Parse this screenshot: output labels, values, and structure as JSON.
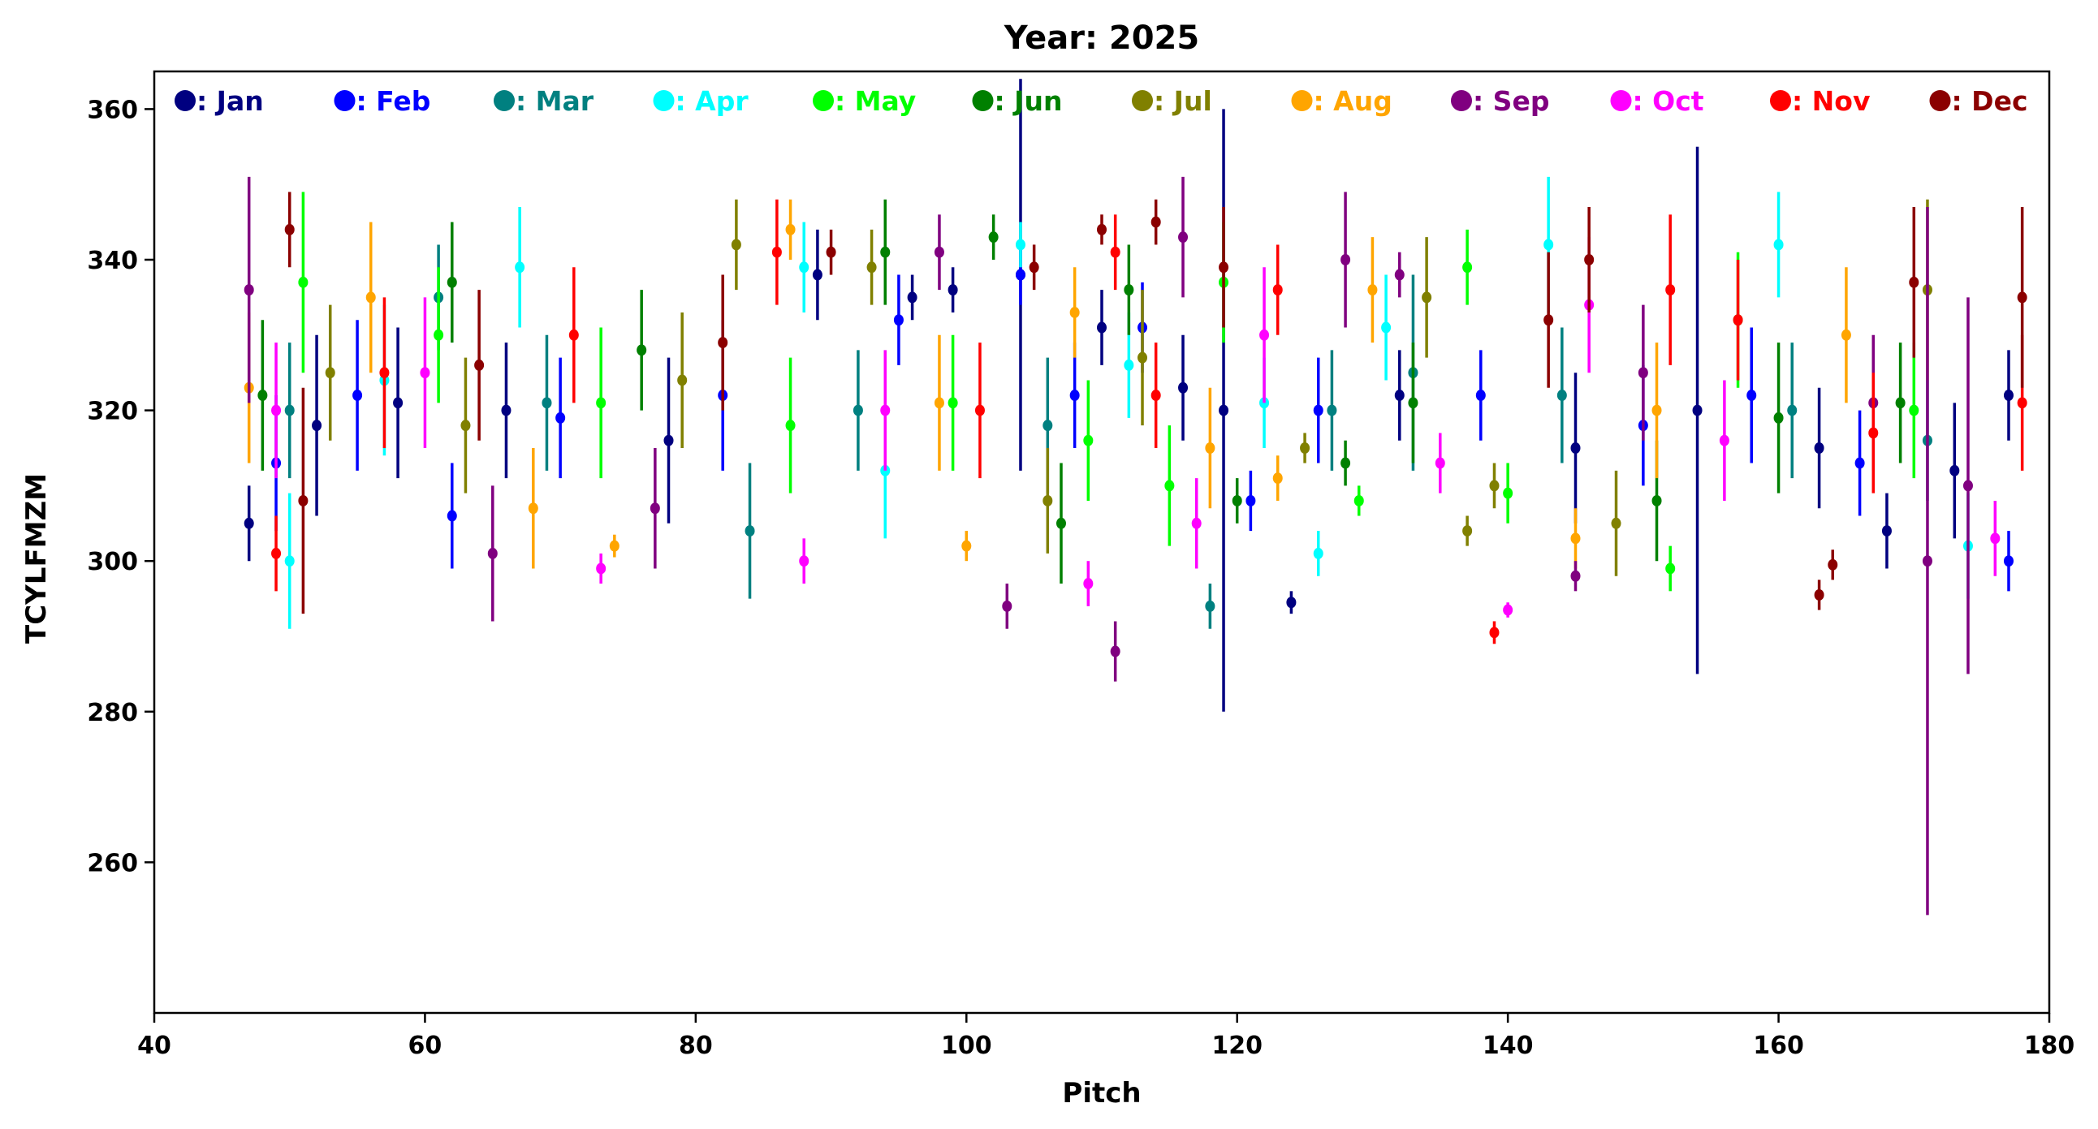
{
  "chart_data": {
    "type": "scatter",
    "style": "errorbar",
    "title": "Year: 2025",
    "xlabel": "Pitch",
    "ylabel": "TCYLFMZM",
    "xlim": [
      40,
      180
    ],
    "ylim": [
      240,
      365
    ],
    "x_ticks": [
      40,
      60,
      80,
      100,
      120,
      140,
      160,
      180
    ],
    "y_ticks": [
      260,
      280,
      300,
      320,
      340,
      360
    ],
    "grid": false,
    "legend_placement": "top, single row",
    "note": "Dense error-bar cloud: each point is a mean value with a vertical error bar, colored by month. Points listed are estimated representative samples read from the figure.",
    "series": [
      {
        "name": ": Jan",
        "color": "#000080",
        "points": [
          {
            "x": 47,
            "y": 305,
            "err": 5
          },
          {
            "x": 52,
            "y": 318,
            "err": 12
          },
          {
            "x": 58,
            "y": 321,
            "err": 10
          },
          {
            "x": 66,
            "y": 320,
            "err": 9
          },
          {
            "x": 78,
            "y": 316,
            "err": 11
          },
          {
            "x": 89,
            "y": 338,
            "err": 6
          },
          {
            "x": 96,
            "y": 335,
            "err": 3
          },
          {
            "x": 99,
            "y": 336,
            "err": 3
          },
          {
            "x": 104,
            "y": 338,
            "err": 26
          },
          {
            "x": 110,
            "y": 331,
            "err": 5
          },
          {
            "x": 116,
            "y": 323,
            "err": 7
          },
          {
            "x": 119,
            "y": 320,
            "err": 40
          },
          {
            "x": 124,
            "y": 294.5,
            "err": 1.5
          },
          {
            "x": 132,
            "y": 322,
            "err": 6
          },
          {
            "x": 145,
            "y": 315,
            "err": 10
          },
          {
            "x": 154,
            "y": 320,
            "err": 35
          },
          {
            "x": 163,
            "y": 315,
            "err": 8
          },
          {
            "x": 168,
            "y": 304,
            "err": 5
          },
          {
            "x": 173,
            "y": 312,
            "err": 9
          },
          {
            "x": 177,
            "y": 322,
            "err": 6
          }
        ]
      },
      {
        "name": ": Feb",
        "color": "#0000ff",
        "points": [
          {
            "x": 49,
            "y": 313,
            "err": 9
          },
          {
            "x": 55,
            "y": 322,
            "err": 10
          },
          {
            "x": 62,
            "y": 306,
            "err": 7
          },
          {
            "x": 70,
            "y": 319,
            "err": 8
          },
          {
            "x": 82,
            "y": 322,
            "err": 10
          },
          {
            "x": 95,
            "y": 332,
            "err": 6
          },
          {
            "x": 104,
            "y": 338,
            "err": 4
          },
          {
            "x": 108,
            "y": 322,
            "err": 7
          },
          {
            "x": 113,
            "y": 331,
            "err": 6
          },
          {
            "x": 121,
            "y": 308,
            "err": 4
          },
          {
            "x": 126,
            "y": 320,
            "err": 7
          },
          {
            "x": 138,
            "y": 322,
            "err": 6
          },
          {
            "x": 150,
            "y": 318,
            "err": 8
          },
          {
            "x": 158,
            "y": 322,
            "err": 9
          },
          {
            "x": 166,
            "y": 313,
            "err": 7
          },
          {
            "x": 177,
            "y": 300,
            "err": 4
          }
        ]
      },
      {
        "name": ": Mar",
        "color": "#008080",
        "points": [
          {
            "x": 50,
            "y": 320,
            "err": 9
          },
          {
            "x": 61,
            "y": 335,
            "err": 7
          },
          {
            "x": 69,
            "y": 321,
            "err": 9
          },
          {
            "x": 84,
            "y": 304,
            "err": 9
          },
          {
            "x": 92,
            "y": 320,
            "err": 8
          },
          {
            "x": 106,
            "y": 318,
            "err": 9
          },
          {
            "x": 118,
            "y": 294,
            "err": 3
          },
          {
            "x": 127,
            "y": 320,
            "err": 8
          },
          {
            "x": 133,
            "y": 325,
            "err": 13
          },
          {
            "x": 144,
            "y": 322,
            "err": 9
          },
          {
            "x": 161,
            "y": 320,
            "err": 9
          },
          {
            "x": 171,
            "y": 316,
            "err": 8
          }
        ]
      },
      {
        "name": ": Apr",
        "color": "#00ffff",
        "points": [
          {
            "x": 50,
            "y": 300,
            "err": 9
          },
          {
            "x": 57,
            "y": 324,
            "err": 10
          },
          {
            "x": 67,
            "y": 339,
            "err": 8
          },
          {
            "x": 88,
            "y": 339,
            "err": 6
          },
          {
            "x": 94,
            "y": 312,
            "err": 9
          },
          {
            "x": 104,
            "y": 342,
            "err": 3
          },
          {
            "x": 112,
            "y": 326,
            "err": 7
          },
          {
            "x": 122,
            "y": 321,
            "err": 6
          },
          {
            "x": 126,
            "y": 301,
            "err": 3
          },
          {
            "x": 131,
            "y": 331,
            "err": 7
          },
          {
            "x": 143,
            "y": 342,
            "err": 9
          },
          {
            "x": 160,
            "y": 342,
            "err": 7
          },
          {
            "x": 174,
            "y": 302,
            "err": 7
          }
        ]
      },
      {
        "name": ": May",
        "color": "#00ff00",
        "points": [
          {
            "x": 51,
            "y": 337,
            "err": 12
          },
          {
            "x": 61,
            "y": 330,
            "err": 9
          },
          {
            "x": 73,
            "y": 321,
            "err": 10
          },
          {
            "x": 87,
            "y": 318,
            "err": 9
          },
          {
            "x": 99,
            "y": 321,
            "err": 9
          },
          {
            "x": 109,
            "y": 316,
            "err": 8
          },
          {
            "x": 115,
            "y": 310,
            "err": 8
          },
          {
            "x": 119,
            "y": 337,
            "err": 8
          },
          {
            "x": 129,
            "y": 308,
            "err": 2
          },
          {
            "x": 137,
            "y": 339,
            "err": 5
          },
          {
            "x": 140,
            "y": 309,
            "err": 4
          },
          {
            "x": 152,
            "y": 299,
            "err": 3
          },
          {
            "x": 157,
            "y": 332,
            "err": 9
          },
          {
            "x": 170,
            "y": 320,
            "err": 9
          }
        ]
      },
      {
        "name": ": Jun",
        "color": "#008000",
        "points": [
          {
            "x": 48,
            "y": 322,
            "err": 10
          },
          {
            "x": 62,
            "y": 337,
            "err": 8
          },
          {
            "x": 76,
            "y": 328,
            "err": 8
          },
          {
            "x": 94,
            "y": 341,
            "err": 7
          },
          {
            "x": 102,
            "y": 343,
            "err": 3
          },
          {
            "x": 107,
            "y": 305,
            "err": 8
          },
          {
            "x": 112,
            "y": 336,
            "err": 6
          },
          {
            "x": 120,
            "y": 308,
            "err": 3
          },
          {
            "x": 128,
            "y": 313,
            "err": 3
          },
          {
            "x": 133,
            "y": 321,
            "err": 8
          },
          {
            "x": 151,
            "y": 308,
            "err": 8
          },
          {
            "x": 160,
            "y": 319,
            "err": 10
          },
          {
            "x": 169,
            "y": 321,
            "err": 8
          }
        ]
      },
      {
        "name": ": Jul",
        "color": "#808000",
        "points": [
          {
            "x": 53,
            "y": 325,
            "err": 9
          },
          {
            "x": 63,
            "y": 318,
            "err": 9
          },
          {
            "x": 79,
            "y": 324,
            "err": 9
          },
          {
            "x": 83,
            "y": 342,
            "err": 6
          },
          {
            "x": 93,
            "y": 339,
            "err": 5
          },
          {
            "x": 106,
            "y": 308,
            "err": 7
          },
          {
            "x": 113,
            "y": 327,
            "err": 9
          },
          {
            "x": 125,
            "y": 315,
            "err": 2
          },
          {
            "x": 134,
            "y": 335,
            "err": 8
          },
          {
            "x": 137,
            "y": 304,
            "err": 2
          },
          {
            "x": 139,
            "y": 310,
            "err": 3
          },
          {
            "x": 148,
            "y": 305,
            "err": 7
          },
          {
            "x": 171,
            "y": 336,
            "err": 12
          }
        ]
      },
      {
        "name": ": Aug",
        "color": "#ffa500",
        "points": [
          {
            "x": 47,
            "y": 323,
            "err": 10
          },
          {
            "x": 56,
            "y": 335,
            "err": 10
          },
          {
            "x": 68,
            "y": 307,
            "err": 8
          },
          {
            "x": 74,
            "y": 302,
            "err": 1.5
          },
          {
            "x": 87,
            "y": 344,
            "err": 4
          },
          {
            "x": 98,
            "y": 321,
            "err": 9
          },
          {
            "x": 100,
            "y": 302,
            "err": 2
          },
          {
            "x": 108,
            "y": 333,
            "err": 6
          },
          {
            "x": 118,
            "y": 315,
            "err": 8
          },
          {
            "x": 123,
            "y": 311,
            "err": 3
          },
          {
            "x": 130,
            "y": 336,
            "err": 7
          },
          {
            "x": 145,
            "y": 303,
            "err": 4
          },
          {
            "x": 151,
            "y": 320,
            "err": 9
          },
          {
            "x": 165,
            "y": 330,
            "err": 9
          }
        ]
      },
      {
        "name": ": Sep",
        "color": "#800080",
        "points": [
          {
            "x": 47,
            "y": 336,
            "err": 15
          },
          {
            "x": 65,
            "y": 301,
            "err": 9
          },
          {
            "x": 77,
            "y": 307,
            "err": 8
          },
          {
            "x": 98,
            "y": 341,
            "err": 5
          },
          {
            "x": 103,
            "y": 294,
            "err": 3
          },
          {
            "x": 111,
            "y": 288,
            "err": 4
          },
          {
            "x": 116,
            "y": 343,
            "err": 8
          },
          {
            "x": 128,
            "y": 340,
            "err": 9
          },
          {
            "x": 132,
            "y": 338,
            "err": 3
          },
          {
            "x": 145,
            "y": 298,
            "err": 2
          },
          {
            "x": 150,
            "y": 325,
            "err": 9
          },
          {
            "x": 167,
            "y": 321,
            "err": 9
          },
          {
            "x": 171,
            "y": 300,
            "err": 47
          },
          {
            "x": 174,
            "y": 310,
            "err": 25
          }
        ]
      },
      {
        "name": ": Oct",
        "color": "#ff00ff",
        "points": [
          {
            "x": 49,
            "y": 320,
            "err": 9
          },
          {
            "x": 60,
            "y": 325,
            "err": 10
          },
          {
            "x": 73,
            "y": 299,
            "err": 2
          },
          {
            "x": 88,
            "y": 300,
            "err": 3
          },
          {
            "x": 94,
            "y": 320,
            "err": 8
          },
          {
            "x": 109,
            "y": 297,
            "err": 3
          },
          {
            "x": 117,
            "y": 305,
            "err": 6
          },
          {
            "x": 122,
            "y": 330,
            "err": 9
          },
          {
            "x": 135,
            "y": 313,
            "err": 4
          },
          {
            "x": 140,
            "y": 293.5,
            "err": 1
          },
          {
            "x": 146,
            "y": 334,
            "err": 9
          },
          {
            "x": 156,
            "y": 316,
            "err": 8
          },
          {
            "x": 176,
            "y": 303,
            "err": 5
          }
        ]
      },
      {
        "name": ": Nov",
        "color": "#ff0000",
        "points": [
          {
            "x": 49,
            "y": 301,
            "err": 5
          },
          {
            "x": 57,
            "y": 325,
            "err": 10
          },
          {
            "x": 71,
            "y": 330,
            "err": 9
          },
          {
            "x": 86,
            "y": 341,
            "err": 7
          },
          {
            "x": 101,
            "y": 320,
            "err": 9
          },
          {
            "x": 111,
            "y": 341,
            "err": 5
          },
          {
            "x": 114,
            "y": 322,
            "err": 7
          },
          {
            "x": 123,
            "y": 336,
            "err": 6
          },
          {
            "x": 139,
            "y": 290.5,
            "err": 1.5
          },
          {
            "x": 152,
            "y": 336,
            "err": 10
          },
          {
            "x": 157,
            "y": 332,
            "err": 8
          },
          {
            "x": 167,
            "y": 317,
            "err": 8
          },
          {
            "x": 178,
            "y": 321,
            "err": 9
          }
        ]
      },
      {
        "name": ": Dec",
        "color": "#8b0000",
        "points": [
          {
            "x": 50,
            "y": 344,
            "err": 5
          },
          {
            "x": 51,
            "y": 308,
            "err": 15
          },
          {
            "x": 64,
            "y": 326,
            "err": 10
          },
          {
            "x": 82,
            "y": 329,
            "err": 9
          },
          {
            "x": 90,
            "y": 341,
            "err": 3
          },
          {
            "x": 105,
            "y": 339,
            "err": 3
          },
          {
            "x": 110,
            "y": 344,
            "err": 2
          },
          {
            "x": 114,
            "y": 345,
            "err": 3
          },
          {
            "x": 119,
            "y": 339,
            "err": 8
          },
          {
            "x": 143,
            "y": 332,
            "err": 9
          },
          {
            "x": 146,
            "y": 340,
            "err": 7
          },
          {
            "x": 163,
            "y": 295.5,
            "err": 2
          },
          {
            "x": 164,
            "y": 299.5,
            "err": 2
          },
          {
            "x": 170,
            "y": 337,
            "err": 10
          },
          {
            "x": 178,
            "y": 335,
            "err": 12
          }
        ]
      }
    ]
  }
}
